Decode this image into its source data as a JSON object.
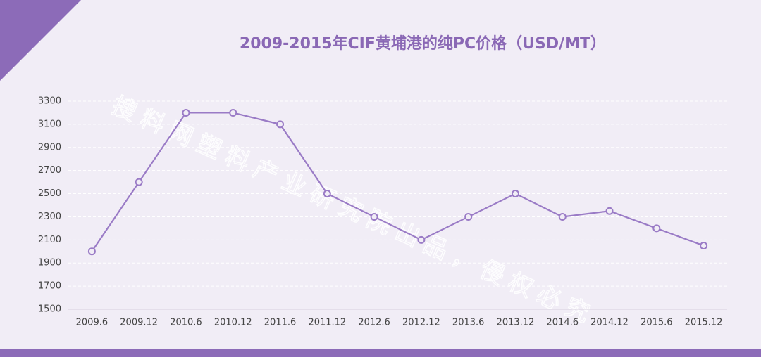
{
  "chart_data": {
    "type": "line",
    "title": "2009-2015年CIF黄埔港的纯PC价格（USD/MT）",
    "watermark": "搜料网塑料产业研究院出品，侵权必究",
    "categories": [
      "2009.6",
      "2009.12",
      "2010.6",
      "2010.12",
      "2011.6",
      "2011.12",
      "2012.6",
      "2012.12",
      "2013.6",
      "2013.12",
      "2014.6",
      "2014.12",
      "2015.6",
      "2015.12"
    ],
    "series": [
      {
        "name": "纯PC价格",
        "color": "#9a7bc6",
        "values": [
          2000,
          2600,
          3200,
          3200,
          3100,
          2500,
          2300,
          2100,
          2300,
          2500,
          2300,
          2350,
          2200,
          2050
        ]
      }
    ],
    "ylim": [
      1500,
      3300
    ],
    "yticks": [
      1500,
      1700,
      1900,
      2100,
      2300,
      2500,
      2700,
      2900,
      3100,
      3300
    ],
    "grid": true
  }
}
